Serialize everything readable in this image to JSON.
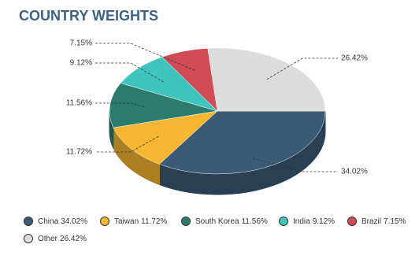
{
  "chart_data": {
    "type": "pie3d",
    "title": "COUNTRY WEIGHTS",
    "categories": [
      "China",
      "Taiwan",
      "South Korea",
      "India",
      "Brazil",
      "Other"
    ],
    "values": [
      34.02,
      11.72,
      11.56,
      9.12,
      7.15,
      26.42
    ],
    "value_labels": [
      "34.02%",
      "11.72%",
      "11.56%",
      "9.12%",
      "7.15%",
      "26.42%"
    ],
    "colors": [
      "#3b5a76",
      "#f6b631",
      "#2a7c6c",
      "#3fc5bd",
      "#cf4b55",
      "#dcdcdc"
    ]
  }
}
